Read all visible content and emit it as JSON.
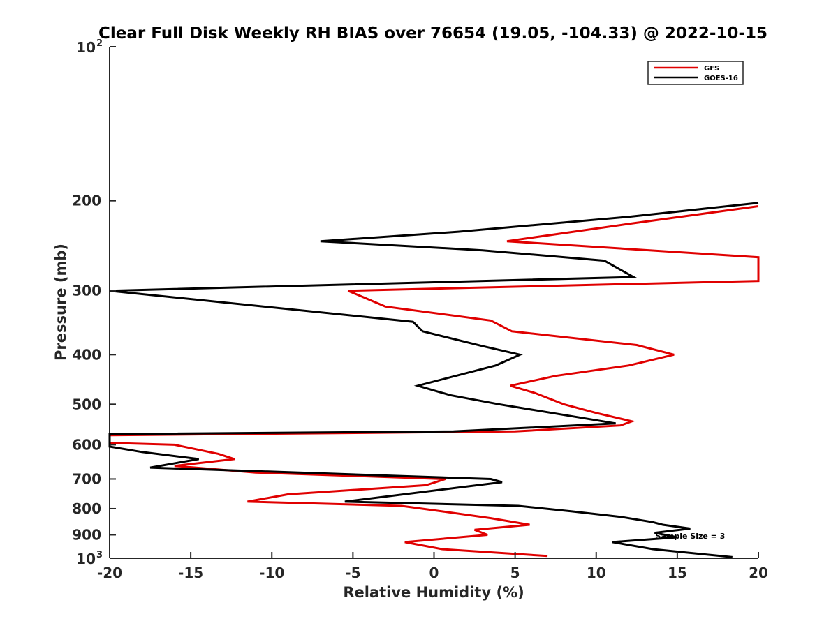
{
  "chart_data": {
    "type": "line",
    "title": "Clear Full Disk Weekly RH BIAS over 76654 (19.05, -104.33) @ 2022-10-15",
    "xlabel": "Relative Humidity (%)",
    "ylabel": "Pressure (mb)",
    "xlim": [
      -20,
      20
    ],
    "ylim": [
      100,
      1000
    ],
    "y_scale": "log",
    "y_reversed": true,
    "grid": false,
    "legend_position": "top-right",
    "x_ticks": [
      {
        "value": -20,
        "label": "-20"
      },
      {
        "value": -15,
        "label": "-15"
      },
      {
        "value": -10,
        "label": "-10"
      },
      {
        "value": -5,
        "label": "-5"
      },
      {
        "value": 0,
        "label": "0"
      },
      {
        "value": 5,
        "label": "5"
      },
      {
        "value": 10,
        "label": "10"
      },
      {
        "value": 15,
        "label": "15"
      },
      {
        "value": 20,
        "label": "20"
      }
    ],
    "y_ticks": [
      {
        "value": 100,
        "base": "10",
        "exp": "2"
      },
      {
        "value": 200,
        "label": "200"
      },
      {
        "value": 300,
        "label": "300"
      },
      {
        "value": 400,
        "label": "400"
      },
      {
        "value": 500,
        "label": "500"
      },
      {
        "value": 600,
        "label": "600"
      },
      {
        "value": 700,
        "label": "700"
      },
      {
        "value": 800,
        "label": "800"
      },
      {
        "value": 900,
        "label": "900"
      },
      {
        "value": 1000,
        "base": "10",
        "exp": "3"
      }
    ],
    "series": [
      {
        "name": "GFS",
        "color": "#e00000",
        "points": [
          [
            20,
            205
          ],
          [
            12,
            222
          ],
          [
            4.5,
            240
          ],
          [
            20,
            258
          ],
          [
            20,
            287
          ],
          [
            -5.3,
            300
          ],
          [
            -3,
            322
          ],
          [
            3.5,
            343
          ],
          [
            4.8,
            360
          ],
          [
            12.5,
            383
          ],
          [
            14.8,
            400
          ],
          [
            12,
            420
          ],
          [
            7.5,
            440
          ],
          [
            4.7,
            460
          ],
          [
            6.2,
            475
          ],
          [
            8,
            500
          ],
          [
            10,
            520
          ],
          [
            12.2,
            540
          ],
          [
            11.5,
            550
          ],
          [
            5,
            565
          ],
          [
            -20,
            575
          ],
          [
            -20,
            595
          ],
          [
            -16,
            600
          ],
          [
            -13.3,
            625
          ],
          [
            -12.3,
            640
          ],
          [
            -16,
            660
          ],
          [
            -11,
            680
          ],
          [
            0.7,
            700
          ],
          [
            -0.5,
            720
          ],
          [
            -9,
            750
          ],
          [
            -11.5,
            775
          ],
          [
            -2,
            790
          ],
          [
            0.5,
            810
          ],
          [
            3.5,
            835
          ],
          [
            5.9,
            860
          ],
          [
            2.5,
            880
          ],
          [
            3.3,
            900
          ],
          [
            -1.8,
            930
          ],
          [
            0.5,
            960
          ],
          [
            7,
            990
          ]
        ]
      },
      {
        "name": "GOES-16",
        "color": "#000000",
        "points": [
          [
            20,
            202
          ],
          [
            12,
            215
          ],
          [
            1.5,
            230
          ],
          [
            -7,
            240
          ],
          [
            3,
            250
          ],
          [
            10.5,
            262
          ],
          [
            12.3,
            282
          ],
          [
            -20,
            300
          ],
          [
            -1.3,
            345
          ],
          [
            -0.7,
            360
          ],
          [
            3,
            385
          ],
          [
            5.3,
            400
          ],
          [
            3.8,
            420
          ],
          [
            -1,
            460
          ],
          [
            1,
            480
          ],
          [
            4,
            500
          ],
          [
            11.2,
            545
          ],
          [
            1.2,
            565
          ],
          [
            -20,
            572
          ],
          [
            -20,
            605
          ],
          [
            -18,
            620
          ],
          [
            -14.5,
            640
          ],
          [
            -17.5,
            665
          ],
          [
            3.5,
            700
          ],
          [
            4.2,
            710
          ],
          [
            -5.5,
            775
          ],
          [
            5.2,
            790
          ],
          [
            8.5,
            810
          ],
          [
            11.5,
            830
          ],
          [
            13.5,
            850
          ],
          [
            14.1,
            860
          ],
          [
            15.8,
            875
          ],
          [
            13.6,
            892
          ],
          [
            15,
            910
          ],
          [
            11,
            930
          ],
          [
            13.5,
            960
          ],
          [
            18.4,
            995
          ]
        ]
      }
    ],
    "annotation": {
      "text": "Sample Size = 3",
      "x": 15.8,
      "y": 905
    }
  }
}
